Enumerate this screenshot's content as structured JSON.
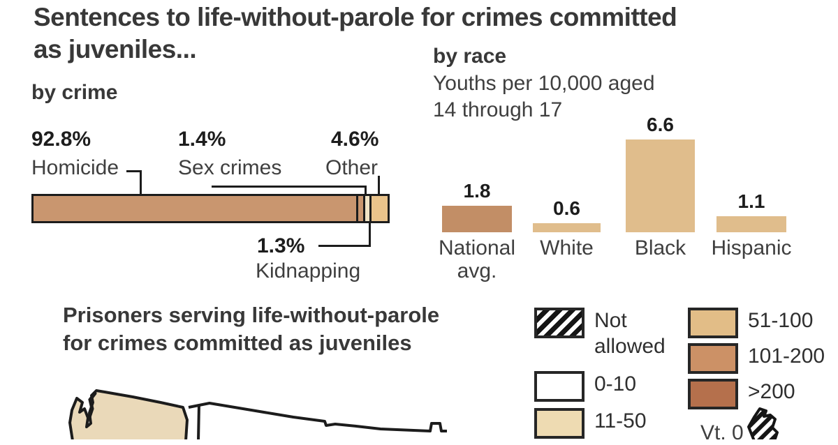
{
  "title": {
    "line1": "Sentences to life-without-parole for crimes committed",
    "line2": "as juveniles..."
  },
  "chart_data": [
    {
      "type": "bar",
      "variant": "horizontal-stacked",
      "heading": "by crime",
      "unit": "percent of sentences",
      "xlim": [
        0,
        100
      ],
      "segments": [
        {
          "category": "Homicide",
          "value": 92.8,
          "label": "92.8%",
          "color": "#c9966f"
        },
        {
          "category": "Sex crimes",
          "value": 1.4,
          "label": "1.4%",
          "color": "#c9966f"
        },
        {
          "category": "Kidnapping",
          "value": 1.3,
          "label": "1.3%",
          "color": "#f0e4c6"
        },
        {
          "category": "Other",
          "value": 4.6,
          "label": "4.6%",
          "color": "#e9c38b"
        }
      ]
    },
    {
      "type": "bar",
      "heading": "by race",
      "subtitle_line1": "Youths per 10,000 aged",
      "subtitle_line2": "14 through 17",
      "ylim": [
        0,
        7
      ],
      "grid": false,
      "bars": [
        {
          "category": "National avg.",
          "category_line1": "National",
          "category_line2": "avg.",
          "value": 1.8,
          "label": "1.8",
          "color": "#c28e66"
        },
        {
          "category": "White",
          "category_line1": "White",
          "category_line2": "",
          "value": 0.6,
          "label": "0.6",
          "color": "#e0bd8c"
        },
        {
          "category": "Black",
          "category_line1": "Black",
          "category_line2": "",
          "value": 6.6,
          "label": "6.6",
          "color": "#e0bd8c"
        },
        {
          "category": "Hispanic",
          "category_line1": "Hispanic",
          "category_line2": "",
          "value": 1.1,
          "label": "1.1",
          "color": "#e0bd8c"
        }
      ]
    }
  ],
  "map_section": {
    "title_line1": "Prisoners serving life-without-parole",
    "title_line2": "for crimes committed as juveniles",
    "legend": [
      {
        "label": "Not allowed",
        "style": "hatched"
      },
      {
        "label": "0-10",
        "color": "#ffffff"
      },
      {
        "label": "11-50",
        "color": "#eedbb2"
      },
      {
        "label": "51-100",
        "color": "#e2bd87"
      },
      {
        "label": "101-200",
        "color": "#cc9166"
      },
      {
        "label": ">200",
        "color": "#b5704c"
      }
    ],
    "map_colors": {
      "washington_fill": "#ead9b9",
      "outline": "#1c1c1c"
    },
    "partial_state_label": "Vt. 0"
  }
}
